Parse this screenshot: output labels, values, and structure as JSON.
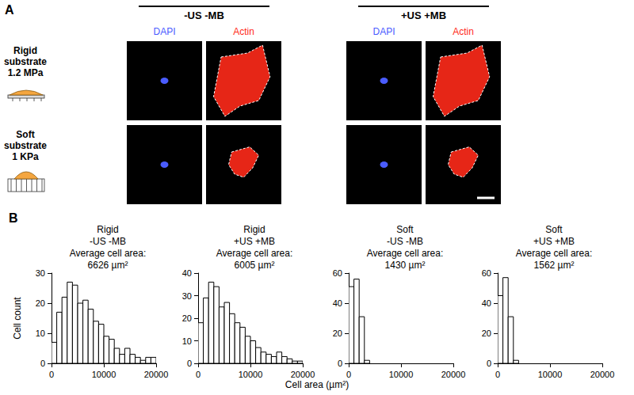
{
  "panel_a": {
    "label": "A",
    "conditions": [
      "-US -MB",
      "+US +MB"
    ],
    "channels": [
      "DAPI",
      "Actin"
    ],
    "rows": [
      {
        "lines": [
          "Rigid",
          "substrate",
          "1.2 MPa"
        ]
      },
      {
        "lines": [
          "Soft",
          "substrate",
          "1 KPa"
        ]
      }
    ]
  },
  "panel_b": {
    "label": "B",
    "xlabel": "Cell area (µm²)",
    "ylabel": "Cell count"
  },
  "chart_data": [
    {
      "type": "histogram",
      "title": [
        "Rigid",
        "-US -MB"
      ],
      "average_label": "Average cell area:",
      "average_cell_area": 6626,
      "unit": "µm²",
      "bins": [
        0,
        1000,
        2000,
        3000,
        4000,
        5000,
        6000,
        7000,
        8000,
        9000,
        10000,
        11000,
        12000,
        13000,
        14000,
        15000,
        16000,
        17000,
        18000,
        19000,
        20000
      ],
      "values": [
        7,
        17,
        22,
        27,
        26,
        20,
        21,
        18,
        14,
        13,
        9,
        8,
        5,
        3,
        5,
        3,
        2,
        1,
        2,
        2
      ],
      "color": "#ffffff",
      "xlim": [
        0,
        20000
      ],
      "xticks": [
        0,
        10000,
        20000
      ],
      "ylim": [
        0,
        30
      ],
      "yticks": [
        0,
        10,
        20,
        30
      ],
      "grid": false
    },
    {
      "type": "histogram",
      "title": [
        "Rigid",
        "+US +MB"
      ],
      "average_label": "Average cell area:",
      "average_cell_area": 6005,
      "unit": "µm²",
      "bins": [
        0,
        1000,
        2000,
        3000,
        4000,
        5000,
        6000,
        7000,
        8000,
        9000,
        10000,
        11000,
        12000,
        13000,
        14000,
        15000,
        16000,
        17000,
        18000,
        19000,
        20000
      ],
      "values": [
        18,
        29,
        36,
        34,
        25,
        27,
        22,
        18,
        16,
        12,
        10,
        7,
        5,
        4,
        3,
        5,
        3,
        2,
        1,
        1
      ],
      "color": "#ffffff",
      "xlim": [
        0,
        20000
      ],
      "xticks": [
        0,
        10000,
        20000
      ],
      "ylim": [
        0,
        40
      ],
      "yticks": [
        0,
        10,
        20,
        30,
        40
      ],
      "grid": false
    },
    {
      "type": "histogram",
      "title": [
        "Soft",
        "-US -MB"
      ],
      "average_label": "Average cell area:",
      "average_cell_area": 1430,
      "unit": "µm²",
      "bins": [
        0,
        1000,
        2000,
        3000,
        4000,
        5000,
        6000,
        7000,
        8000,
        9000,
        10000,
        11000,
        12000,
        13000,
        14000,
        15000,
        16000,
        17000,
        18000,
        19000,
        20000
      ],
      "values": [
        51,
        56,
        31,
        2,
        0,
        0,
        0,
        0,
        0,
        0,
        0,
        0,
        0,
        0,
        0,
        0,
        0,
        0,
        0,
        0
      ],
      "color": "#ffffff",
      "xlim": [
        0,
        20000
      ],
      "xticks": [
        0,
        10000,
        20000
      ],
      "ylim": [
        0,
        60
      ],
      "yticks": [
        0,
        20,
        40,
        60
      ],
      "grid": false
    },
    {
      "type": "histogram",
      "title": [
        "Soft",
        "+US +MB"
      ],
      "average_label": "Average cell area:",
      "average_cell_area": 1562,
      "unit": "µm²",
      "bins": [
        0,
        1000,
        2000,
        3000,
        4000,
        5000,
        6000,
        7000,
        8000,
        9000,
        10000,
        11000,
        12000,
        13000,
        14000,
        15000,
        16000,
        17000,
        18000,
        19000,
        20000
      ],
      "values": [
        45,
        57,
        31,
        2,
        0,
        0,
        0,
        0,
        0,
        0,
        0,
        0,
        0,
        0,
        0,
        0,
        0,
        0,
        0,
        0
      ],
      "color": "#ffffff",
      "xlim": [
        0,
        20000
      ],
      "xticks": [
        0,
        10000,
        20000
      ],
      "ylim": [
        0,
        60
      ],
      "yticks": [
        0,
        20,
        40,
        60
      ],
      "grid": false
    }
  ]
}
